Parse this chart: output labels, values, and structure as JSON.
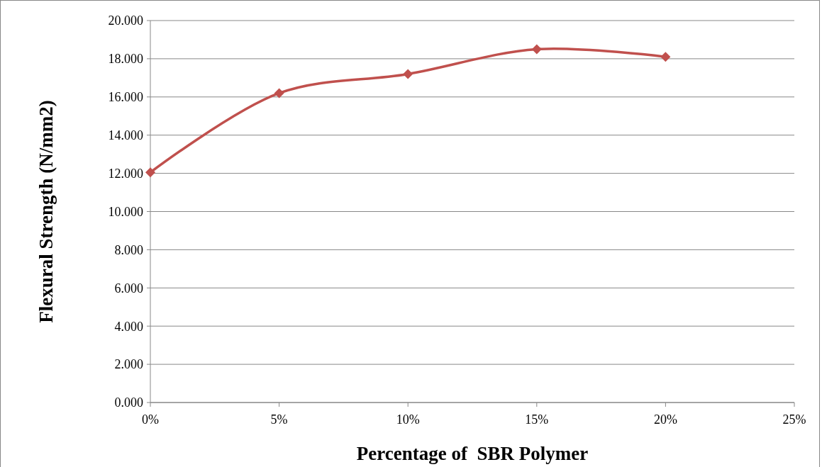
{
  "chart_data": {
    "type": "line",
    "xlabel": "Percentage of  SBR Polymer",
    "ylabel": "Flexural Strength (N/mm2)",
    "x": [
      0,
      5,
      10,
      15,
      20
    ],
    "series": [
      {
        "color": "#c0504d",
        "values": [
          12.05,
          16.2,
          17.2,
          18.5,
          18.1
        ]
      }
    ],
    "xlim": [
      0,
      25
    ],
    "xticks": [
      {
        "value": 0,
        "label": "0%"
      },
      {
        "value": 5,
        "label": "5%"
      },
      {
        "value": 10,
        "label": "10%"
      },
      {
        "value": 15,
        "label": "15%"
      },
      {
        "value": 20,
        "label": "20%"
      },
      {
        "value": 25,
        "label": "25%"
      }
    ],
    "ylim": [
      0,
      20
    ],
    "yticks": [
      {
        "value": 0,
        "label": "0.000"
      },
      {
        "value": 2,
        "label": "2.000"
      },
      {
        "value": 4,
        "label": "4.000"
      },
      {
        "value": 6,
        "label": "6.000"
      },
      {
        "value": 8,
        "label": "8.000"
      },
      {
        "value": 10,
        "label": "10.000"
      },
      {
        "value": 12,
        "label": "12.000"
      },
      {
        "value": 14,
        "label": "14.000"
      },
      {
        "value": 16,
        "label": "16.000"
      },
      {
        "value": 18,
        "label": "18.000"
      },
      {
        "value": 20,
        "label": "20.000"
      }
    ],
    "grid": "y",
    "marker": "diamond",
    "line_style": "solid"
  }
}
